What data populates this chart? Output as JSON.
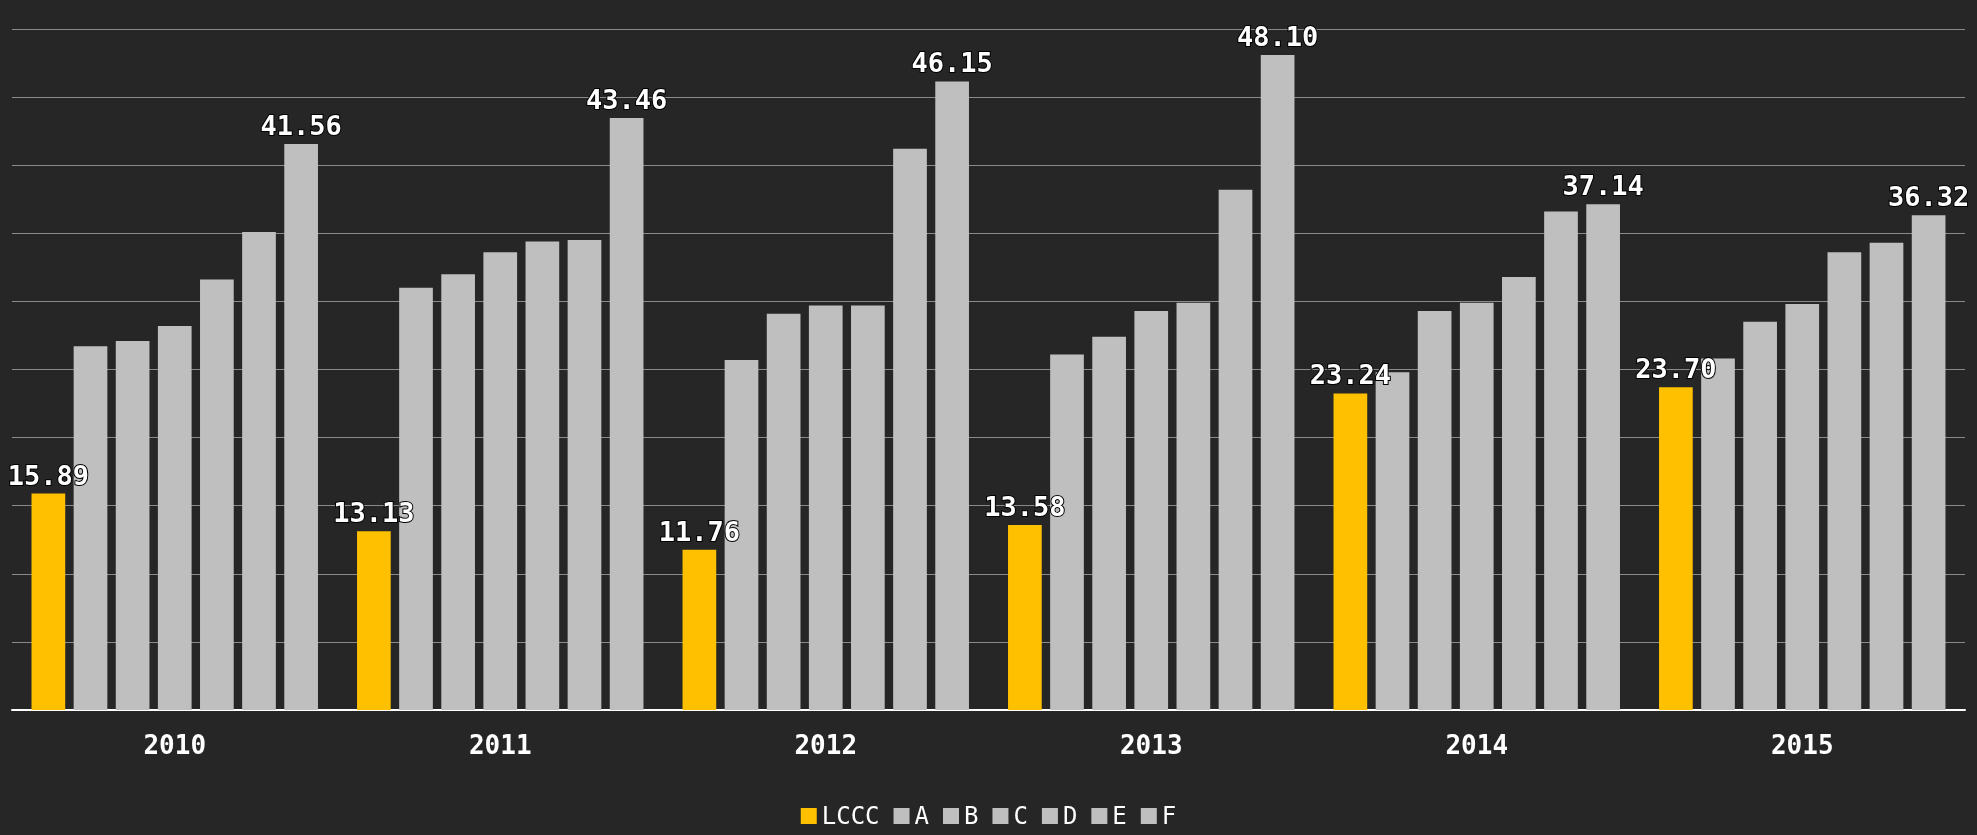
{
  "chart_data": {
    "type": "bar",
    "categories": [
      "2010",
      "2011",
      "2012",
      "2013",
      "2014",
      "2015"
    ],
    "series": [
      {
        "name": "LCCC",
        "color": "#ffc000",
        "values": [
          15.89,
          13.13,
          11.76,
          13.58,
          23.24,
          23.7
        ],
        "value_labels": [
          "15.89",
          "13.13",
          "11.76",
          "13.58",
          "23.24",
          "23.70"
        ]
      },
      {
        "name": "A",
        "color": "#bfbfbf",
        "values": [
          26.7,
          31.0,
          25.7,
          26.1,
          24.8,
          25.8
        ]
      },
      {
        "name": "B",
        "color": "#bfbfbf",
        "values": [
          27.1,
          32.0,
          29.1,
          27.4,
          29.3,
          28.5
        ]
      },
      {
        "name": "C",
        "color": "#bfbfbf",
        "values": [
          28.2,
          33.6,
          29.7,
          29.3,
          29.9,
          29.8
        ]
      },
      {
        "name": "D",
        "color": "#bfbfbf",
        "values": [
          31.6,
          34.4,
          29.7,
          29.9,
          31.8,
          33.6
        ]
      },
      {
        "name": "E",
        "color": "#bfbfbf",
        "values": [
          35.1,
          34.5,
          41.2,
          38.2,
          36.6,
          34.3
        ]
      },
      {
        "name": "F",
        "color": "#bfbfbf",
        "values": [
          41.56,
          43.46,
          46.15,
          48.1,
          37.14,
          36.32
        ],
        "value_labels": [
          "41.56",
          "43.46",
          "46.15",
          "48.10",
          "37.14",
          "36.32"
        ]
      }
    ],
    "ylim": [
      0,
      50
    ],
    "yticks": [
      {
        "value": 0,
        "label": null
      },
      {
        "value": 5,
        "label": null
      },
      {
        "value": 10,
        "label": null
      },
      {
        "value": 15,
        "label": null
      },
      {
        "value": 20,
        "label": null
      },
      {
        "value": 25,
        "label": null
      },
      {
        "value": 30,
        "label": null
      },
      {
        "value": 35,
        "label": null
      },
      {
        "value": 40,
        "label": null
      },
      {
        "value": 45,
        "label": null
      },
      {
        "value": 50,
        "label": null
      }
    ],
    "grid": "y",
    "legend": "bottom"
  }
}
